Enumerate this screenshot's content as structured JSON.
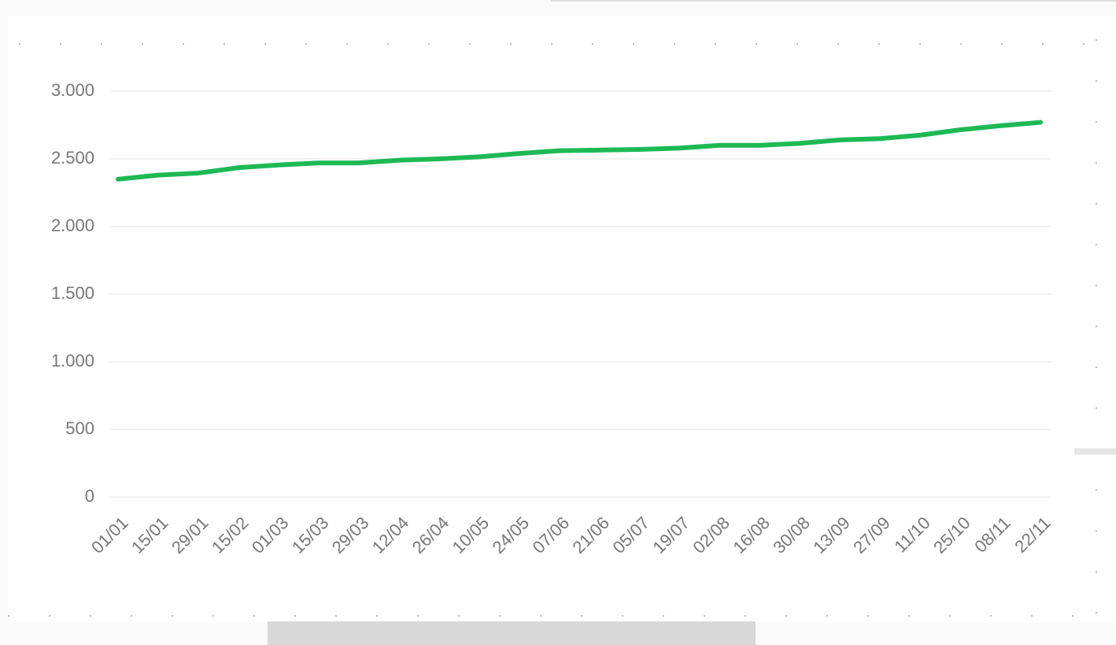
{
  "chart_data": {
    "type": "line",
    "categories": [
      "01/01",
      "15/01",
      "29/01",
      "15/02",
      "01/03",
      "15/03",
      "29/03",
      "12/04",
      "26/04",
      "10/05",
      "24/05",
      "07/06",
      "21/06",
      "05/07",
      "19/07",
      "02/08",
      "16/08",
      "30/08",
      "13/09",
      "27/09",
      "11/10",
      "25/10",
      "08/11",
      "22/11"
    ],
    "series": [
      {
        "color": "#1db954",
        "values": [
          2350,
          2380,
          2395,
          2435,
          2455,
          2470,
          2470,
          2490,
          2500,
          2515,
          2540,
          2560,
          2565,
          2570,
          2580,
          2600,
          2600,
          2615,
          2640,
          2650,
          2675,
          2715,
          2745,
          2770
        ]
      }
    ],
    "ylim": [
      0,
      3000
    ],
    "yticks": [
      0,
      500,
      {
        "value": 1000,
        "label": "1.000"
      },
      {
        "value": 1500,
        "label": "1.500"
      },
      {
        "value": 2000,
        "label": "2.000"
      },
      {
        "value": 2500,
        "label": "2.500"
      },
      {
        "value": 3000,
        "label": "3.000"
      }
    ],
    "grid": true
  }
}
